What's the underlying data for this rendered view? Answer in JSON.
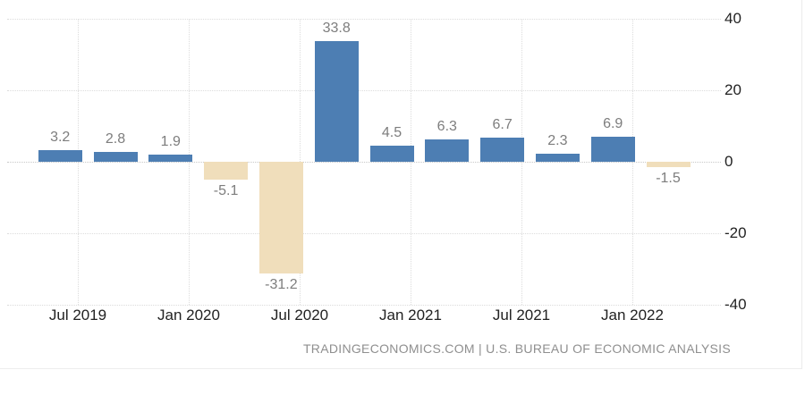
{
  "chart_data": {
    "type": "bar",
    "title": "",
    "xlabel": "",
    "ylabel": "",
    "categories": [
      "2019 Q2",
      "2019 Q3",
      "2019 Q4",
      "2020 Q1",
      "2020 Q2",
      "2020 Q3",
      "2020 Q4",
      "2021 Q1",
      "2021 Q2",
      "2021 Q3",
      "2021 Q4",
      "2022 Q1"
    ],
    "values": [
      3.2,
      2.8,
      1.9,
      -5.1,
      -31.2,
      33.8,
      4.5,
      6.3,
      6.7,
      2.3,
      6.9,
      -1.5
    ],
    "value_labels": [
      "3.2",
      "2.8",
      "1.9",
      "-5.1",
      "-31.2",
      "33.8",
      "4.5",
      "6.3",
      "6.7",
      "2.3",
      "6.9",
      "-1.5"
    ],
    "x_tick_labels": [
      "Jul 2019",
      "Jan 2020",
      "Jul 2020",
      "Jan 2021",
      "Jul 2021",
      "Jan 2022"
    ],
    "y_tick_labels": [
      "40",
      "20",
      "0",
      "-20",
      "-40"
    ],
    "y_tick_values": [
      40,
      20,
      0,
      -20,
      -40
    ],
    "ylim": [
      -40,
      40
    ],
    "grid": "dotted, horizontal and vertical",
    "legend": "none",
    "colors": {
      "positive_bar": "#4d7eb3",
      "negative_bar": "#f0debb",
      "value_label": "#7d7d7d",
      "axis_label": "#222222",
      "gridline": "#dcdcdc",
      "attribution_text": "#8f8f8f"
    }
  },
  "footer": {
    "attribution": "TRADINGECONOMICS.COM | U.S. BUREAU OF ECONOMIC ANALYSIS"
  }
}
